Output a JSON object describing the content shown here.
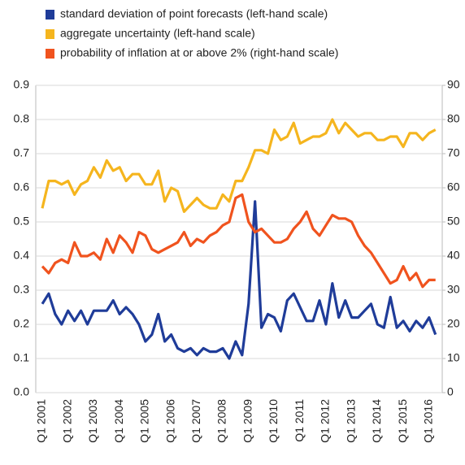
{
  "chart_data": {
    "type": "line",
    "categories": [
      "Q1 2001",
      null,
      null,
      null,
      "Q1 2002",
      null,
      null,
      null,
      "Q1 2003",
      null,
      null,
      null,
      "Q1 2004",
      null,
      null,
      null,
      "Q1 2005",
      null,
      null,
      null,
      "Q1 2006",
      null,
      null,
      null,
      "Q1 2007",
      null,
      null,
      null,
      "Q1 2008",
      null,
      null,
      null,
      "Q1 2009",
      null,
      null,
      null,
      "Q1 2010",
      null,
      null,
      null,
      "Q1 2011",
      null,
      null,
      null,
      "Q1 2012",
      null,
      null,
      null,
      "Q1 2013",
      null,
      null,
      null,
      "Q1 2014",
      null,
      null,
      null,
      "Q1 2015",
      null,
      null,
      null,
      "Q1 2016",
      null
    ],
    "series": [
      {
        "name": "standard deviation of point forecasts (left-hand scale)",
        "color": "#1f3c99",
        "axis": "y",
        "values": [
          0.26,
          0.29,
          0.23,
          0.2,
          0.24,
          0.21,
          0.24,
          0.2,
          0.24,
          0.24,
          0.24,
          0.27,
          0.23,
          0.25,
          0.23,
          0.2,
          0.15,
          0.17,
          0.23,
          0.15,
          0.17,
          0.13,
          0.12,
          0.13,
          0.11,
          0.13,
          0.12,
          0.12,
          0.13,
          0.1,
          0.15,
          0.11,
          0.26,
          0.56,
          0.19,
          0.23,
          0.22,
          0.18,
          0.27,
          0.29,
          0.25,
          0.21,
          0.21,
          0.27,
          0.2,
          0.32,
          0.22,
          0.27,
          0.22,
          0.22,
          0.24,
          0.26,
          0.2,
          0.19,
          0.28,
          0.19,
          0.21,
          0.18,
          0.21,
          0.19,
          0.22,
          0.17
        ]
      },
      {
        "name": "aggregate uncertainty (left-hand scale)",
        "color": "#f5b51e",
        "axis": "y",
        "values": [
          0.54,
          0.62,
          0.62,
          0.61,
          0.62,
          0.58,
          0.61,
          0.62,
          0.66,
          0.63,
          0.68,
          0.65,
          0.66,
          0.62,
          0.64,
          0.64,
          0.61,
          0.61,
          0.65,
          0.56,
          0.6,
          0.59,
          0.53,
          0.55,
          0.57,
          0.55,
          0.54,
          0.54,
          0.58,
          0.56,
          0.62,
          0.62,
          0.66,
          0.71,
          0.71,
          0.7,
          0.77,
          0.74,
          0.75,
          0.79,
          0.73,
          0.74,
          0.75,
          0.75,
          0.76,
          0.8,
          0.76,
          0.79,
          0.77,
          0.75,
          0.76,
          0.76,
          0.74,
          0.74,
          0.75,
          0.75,
          0.72,
          0.76,
          0.76,
          0.74,
          0.76,
          0.77
        ]
      },
      {
        "name": "probability of inflation at or above 2% (right-hand scale)",
        "color": "#f0531e",
        "axis": "y2",
        "values": [
          37,
          35,
          38,
          39,
          38,
          44,
          40,
          40,
          41,
          39,
          45,
          41,
          46,
          44,
          41,
          47,
          46,
          42,
          41,
          42,
          43,
          44,
          47,
          43,
          45,
          44,
          46,
          47,
          49,
          50,
          57,
          58,
          50,
          47,
          48,
          46,
          44,
          44,
          45,
          48,
          50,
          53,
          48,
          46,
          49,
          52,
          51,
          51,
          50,
          46,
          43,
          41,
          38,
          35,
          32,
          33,
          37,
          33,
          35,
          31,
          33,
          33
        ]
      }
    ],
    "ylim": [
      0,
      0.9
    ],
    "yticks": [
      {
        "value": 0,
        "label": "0.0"
      },
      0.1,
      0.2,
      0.3,
      0.4,
      0.5,
      0.6,
      0.7,
      0.8,
      0.9
    ],
    "y2lim": [
      0,
      90
    ],
    "y2ticks": [
      0,
      10,
      20,
      30,
      40,
      50,
      60,
      70,
      80,
      90
    ],
    "grid": true,
    "legend": "top-left"
  }
}
